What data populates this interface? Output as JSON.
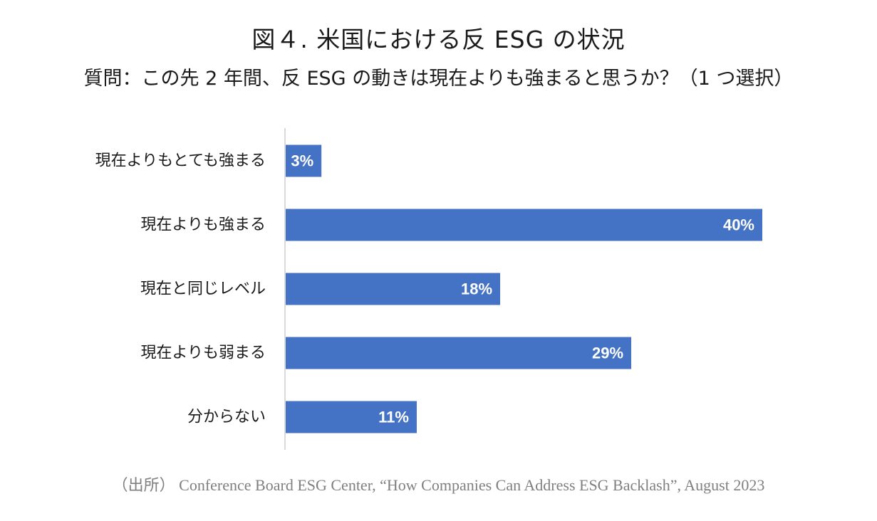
{
  "title": "図４.  米国における反 ESG の状況",
  "subtitle": "質問：この先 2 年間、反 ESG の動きは現在よりも強まると思うか？（1 つ選択）",
  "source": "（出所） Conference Board ESG Center, “How Companies Can Address ESG Backlash”, August 2023",
  "colors": {
    "bar": "#4472C4",
    "axis": "#D9D9D9",
    "label_inside": "#FFFFFF",
    "category_text": "#1A1A1A"
  },
  "chart_data": {
    "type": "bar",
    "orientation": "horizontal",
    "categories": [
      "現在よりもとても強まる",
      "現在よりも強まる",
      "現在と同じレベル",
      "現在よりも弱まる",
      "分からない"
    ],
    "values": [
      3,
      40,
      18,
      29,
      11
    ],
    "data_labels": [
      "3%",
      "40%",
      "18%",
      "29%",
      "11%"
    ],
    "unit": "%",
    "xlim": [
      0,
      40
    ],
    "grid": false,
    "legend": false
  }
}
